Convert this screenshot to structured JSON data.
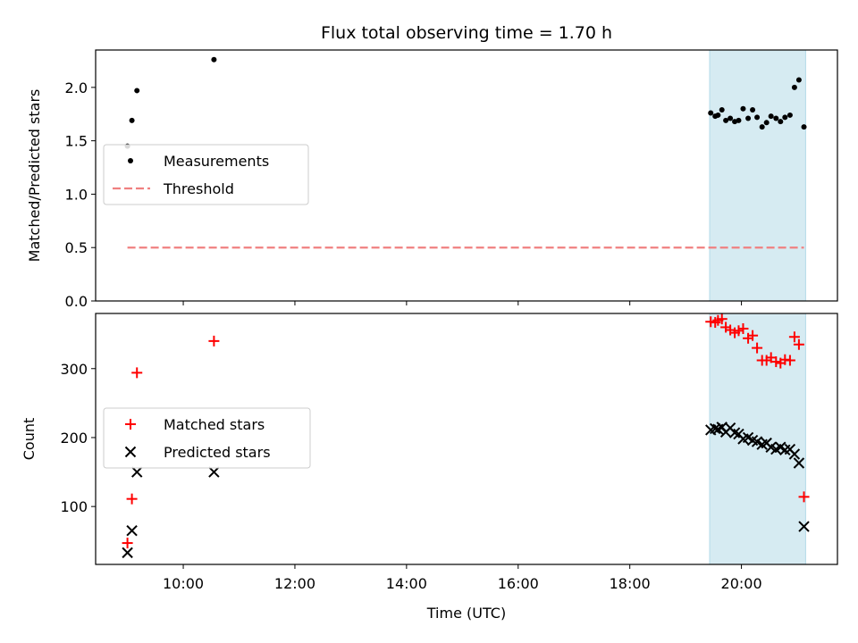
{
  "title": "Flux total observing time = 1.70 h",
  "chart_data": [
    {
      "type": "scatter",
      "ylabel": "Matched/Predicted stars",
      "xlabel": "",
      "xlim_hours": [
        8.43,
        21.72
      ],
      "ylim": [
        0,
        2.35
      ],
      "yticks": [
        0.0,
        0.5,
        1.0,
        1.5,
        2.0
      ],
      "ytick_labels": [
        "0.0",
        "0.5",
        "1.0",
        "1.5",
        "2.0"
      ],
      "highlight_span_hours": [
        19.43,
        21.15
      ],
      "highlight_color": "#add8e6",
      "legend_position": "center-left",
      "series": [
        {
          "name": "Measurements",
          "marker": "dot",
          "color": "#000000",
          "x": [
            9.0,
            9.08,
            9.17,
            10.55,
            19.45,
            19.53,
            19.58,
            19.65,
            19.72,
            19.8,
            19.88,
            19.95,
            20.03,
            20.12,
            20.2,
            20.28,
            20.37,
            20.45,
            20.53,
            20.62,
            20.7,
            20.78,
            20.87,
            20.95,
            21.03,
            21.12
          ],
          "y": [
            1.45,
            1.69,
            1.97,
            2.26,
            1.76,
            1.73,
            1.74,
            1.79,
            1.69,
            1.71,
            1.68,
            1.69,
            1.8,
            1.71,
            1.79,
            1.72,
            1.63,
            1.67,
            1.73,
            1.71,
            1.68,
            1.72,
            1.74,
            2.0,
            2.07,
            1.63
          ]
        },
        {
          "name": "Threshold",
          "style": "dashed",
          "color": "#f08080",
          "x": [
            9.0,
            21.12
          ],
          "y": [
            0.5,
            0.5
          ]
        }
      ]
    },
    {
      "type": "scatter",
      "ylabel": "Count",
      "xlabel": "Time (UTC)",
      "xlim_hours": [
        8.43,
        21.72
      ],
      "xticks_hours": [
        10,
        12,
        14,
        16,
        18,
        20
      ],
      "xtick_labels": [
        "10:00",
        "12:00",
        "14:00",
        "16:00",
        "18:00",
        "20:00"
      ],
      "ylim": [
        16,
        380
      ],
      "yticks": [
        100,
        200,
        300
      ],
      "ytick_labels": [
        "100",
        "200",
        "300"
      ],
      "highlight_span_hours": [
        19.43,
        21.15
      ],
      "highlight_color": "#add8e6",
      "legend_position": "center-left",
      "series": [
        {
          "name": "Matched stars",
          "marker": "plus",
          "color": "#ff0000",
          "x": [
            9.0,
            9.08,
            9.17,
            10.55,
            19.45,
            19.53,
            19.58,
            19.65,
            19.72,
            19.8,
            19.88,
            19.95,
            20.03,
            20.12,
            20.2,
            20.28,
            20.37,
            20.45,
            20.53,
            20.62,
            20.7,
            20.78,
            20.87,
            20.95,
            21.03,
            21.12
          ],
          "y": [
            47,
            111,
            294,
            340,
            368,
            367,
            370,
            372,
            360,
            356,
            352,
            355,
            358,
            344,
            348,
            330,
            312,
            312,
            316,
            310,
            308,
            313,
            312,
            346,
            335,
            114
          ]
        },
        {
          "name": "Predicted stars",
          "marker": "x",
          "color": "#000000",
          "x": [
            9.0,
            9.08,
            9.17,
            10.55,
            19.45,
            19.53,
            19.58,
            19.65,
            19.72,
            19.8,
            19.88,
            19.95,
            20.03,
            20.12,
            20.2,
            20.28,
            20.37,
            20.45,
            20.53,
            20.62,
            20.7,
            20.78,
            20.87,
            20.95,
            21.03,
            21.12
          ],
          "y": [
            33,
            65,
            150,
            150,
            211,
            213,
            212,
            215,
            208,
            214,
            207,
            205,
            198,
            200,
            196,
            194,
            190,
            192,
            186,
            183,
            186,
            182,
            183,
            176,
            163,
            71
          ]
        }
      ]
    }
  ]
}
